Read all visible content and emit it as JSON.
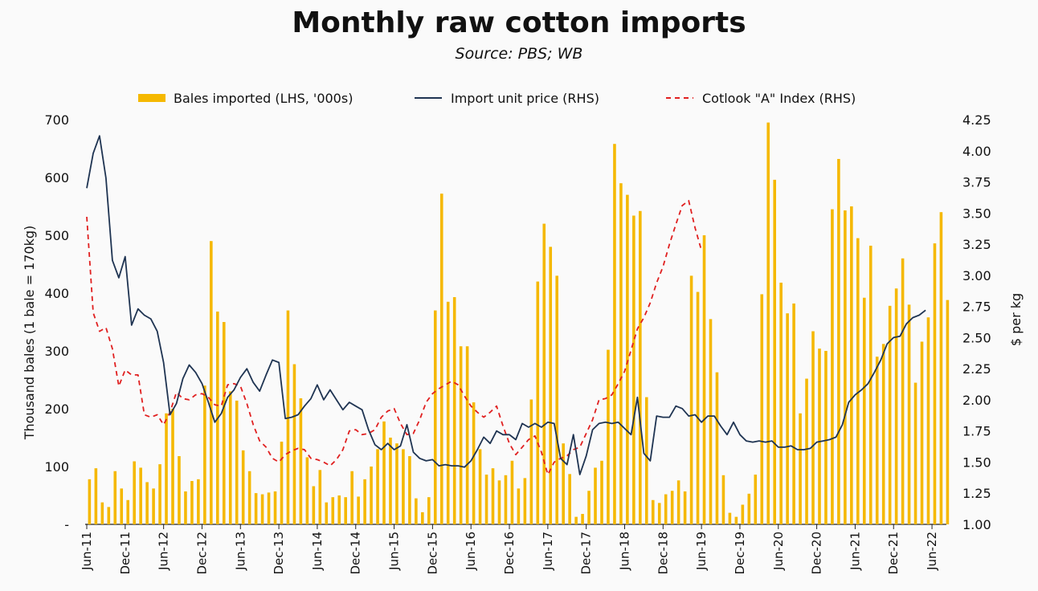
{
  "chart_data": {
    "type": "bar",
    "title": "Monthly raw cotton imports",
    "subtitle": "Source: PBS; WB",
    "ylabel_left": "Thousand bales  (1 bale = 170kg)",
    "ylabel_right": "$ per kg",
    "ylim_left": [
      0,
      700
    ],
    "ylim_right": [
      1.0,
      4.25
    ],
    "yticks_left": [
      "-",
      "100",
      "200",
      "300",
      "400",
      "500",
      "600",
      "700"
    ],
    "yticks_right": [
      "1.00",
      "1.25",
      "1.50",
      "1.75",
      "2.00",
      "2.25",
      "2.50",
      "2.75",
      "3.00",
      "3.25",
      "3.50",
      "3.75",
      "4.00",
      "4.25"
    ],
    "xtick_labels": [
      "Jun-11",
      "Dec-11",
      "Jun-12",
      "Dec-12",
      "Jun-13",
      "Dec-13",
      "Jun-14",
      "Dec-14",
      "Jun-15",
      "Dec-15",
      "Jun-16",
      "Dec-16",
      "Jun-17",
      "Dec-17",
      "Jun-18",
      "Dec-18",
      "Jun-19",
      "Dec-19",
      "Jun-20",
      "Dec-20",
      "Jun-21",
      "Dec-21",
      "Jun-22"
    ],
    "grid": false,
    "legend_position": "top",
    "colors": {
      "bars": "#f5b800",
      "import_price": "#1f3452",
      "cotlook": "#e02020"
    },
    "series": [
      {
        "name": "Bales imported (LHS, '000s)",
        "axis": "left",
        "style": "bar",
        "values": [
          78,
          97,
          38,
          30,
          92,
          62,
          42,
          109,
          98,
          73,
          62,
          104,
          192,
          200,
          118,
          57,
          75,
          78,
          240,
          490,
          368,
          350,
          230,
          214,
          128,
          92,
          54,
          52,
          55,
          57,
          143,
          370,
          277,
          218,
          116,
          66,
          94,
          38,
          47,
          50,
          47,
          92,
          48,
          78,
          100,
          130,
          178,
          150,
          140,
          130,
          118,
          45,
          21,
          47,
          370,
          572,
          385,
          393,
          308,
          308,
          211,
          130,
          86,
          97,
          76,
          85,
          110,
          62,
          80,
          216,
          420,
          520,
          480,
          430,
          140,
          87,
          13,
          18,
          58,
          98,
          110,
          302,
          658,
          590,
          570,
          534,
          542,
          220,
          42,
          37,
          52,
          58,
          76,
          57,
          430,
          402,
          500,
          355,
          263,
          85,
          20,
          13,
          34,
          53,
          86,
          398,
          695,
          596,
          418,
          365,
          382,
          192,
          252,
          334,
          304,
          300,
          545,
          632,
          543,
          550,
          495,
          392,
          482,
          290,
          312,
          378,
          408,
          460,
          380,
          245,
          316,
          358,
          486,
          540,
          388
        ]
      },
      {
        "name": "Import unit price (RHS)",
        "axis": "right",
        "style": "line",
        "values": [
          3.7,
          3.98,
          4.12,
          3.78,
          3.12,
          2.98,
          3.15,
          2.6,
          2.73,
          2.68,
          2.65,
          2.55,
          2.3,
          1.88,
          1.97,
          2.17,
          2.28,
          2.22,
          2.13,
          1.98,
          1.82,
          1.89,
          2.02,
          2.08,
          2.18,
          2.25,
          2.14,
          2.07,
          2.2,
          2.32,
          2.3,
          1.85,
          1.86,
          1.88,
          1.95,
          2.01,
          2.12,
          2.0,
          2.08,
          2.0,
          1.92,
          1.98,
          1.95,
          1.92,
          1.76,
          1.64,
          1.6,
          1.65,
          1.6,
          1.63,
          1.8,
          1.58,
          1.53,
          1.51,
          1.52,
          1.47,
          1.48,
          1.47,
          1.47,
          1.46,
          1.51,
          1.6,
          1.7,
          1.65,
          1.75,
          1.72,
          1.72,
          1.68,
          1.81,
          1.78,
          1.81,
          1.78,
          1.82,
          1.81,
          1.53,
          1.48,
          1.72,
          1.4,
          1.55,
          1.76,
          1.81,
          1.82,
          1.81,
          1.82,
          1.77,
          1.72,
          2.02,
          1.57,
          1.51,
          1.87,
          1.86,
          1.86,
          1.95,
          1.93,
          1.87,
          1.88,
          1.82,
          1.87,
          1.87,
          1.79,
          1.72,
          1.82,
          1.72,
          1.67,
          1.66,
          1.67,
          1.66,
          1.67,
          1.62,
          1.62,
          1.63,
          1.6,
          1.6,
          1.61,
          1.66,
          1.67,
          1.68,
          1.7,
          1.8,
          1.98,
          2.04,
          2.08,
          2.13,
          2.22,
          2.32,
          2.45,
          2.5,
          2.51,
          2.61,
          2.66,
          2.68,
          2.72
        ]
      },
      {
        "name": "Cotlook \"A\" Index (RHS)",
        "axis": "right",
        "style": "dashed",
        "values": [
          3.47,
          2.7,
          2.55,
          2.58,
          2.41,
          2.11,
          2.24,
          2.2,
          2.2,
          1.88,
          1.86,
          1.88,
          1.8,
          1.9,
          2.06,
          2.01,
          2.0,
          2.04,
          2.05,
          2.02,
          1.96,
          1.95,
          2.12,
          2.13,
          2.11,
          1.97,
          1.8,
          1.67,
          1.62,
          1.53,
          1.5,
          1.56,
          1.59,
          1.61,
          1.6,
          1.53,
          1.52,
          1.5,
          1.47,
          1.52,
          1.6,
          1.75,
          1.76,
          1.72,
          1.73,
          1.76,
          1.86,
          1.91,
          1.93,
          1.81,
          1.72,
          1.73,
          1.84,
          1.98,
          2.05,
          2.09,
          2.12,
          2.15,
          2.12,
          2.03,
          1.95,
          1.9,
          1.86,
          1.9,
          1.95,
          1.79,
          1.65,
          1.56,
          1.62,
          1.68,
          1.71,
          1.58,
          1.4,
          1.5,
          1.53,
          1.55,
          1.6,
          1.62,
          1.73,
          1.84,
          2.0,
          2.01,
          2.04,
          2.13,
          2.23,
          2.4,
          2.57,
          2.66,
          2.78,
          2.94,
          3.07,
          3.25,
          3.41,
          3.56,
          3.6,
          3.38,
          3.2
        ]
      }
    ]
  },
  "legend": {
    "bars": "Bales imported (LHS, '000s)",
    "line": "Import unit price (RHS)",
    "dashed": "Cotlook \"A\" Index (RHS)"
  }
}
